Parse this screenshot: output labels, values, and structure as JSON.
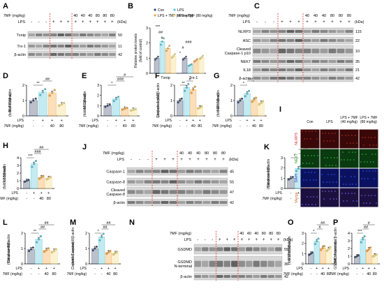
{
  "colors": {
    "con": "#3b4a6b",
    "lps": "#55c6d6",
    "lps40": "#f3a43c",
    "lps80": "#f2d97a",
    "red_dash": "#d9302c"
  },
  "panel_letters": [
    "A",
    "B",
    "C",
    "D",
    "E",
    "F",
    "G",
    "H",
    "I",
    "J",
    "K",
    "L",
    "M",
    "N",
    "O",
    "P"
  ],
  "blot_a": {
    "treat_label": "7MF (mg/kg)",
    "treat_vals": [
      "40",
      "40",
      "40",
      "80",
      "80",
      "80"
    ],
    "lps_label": "LPS",
    "signs": [
      "-",
      "-",
      "-",
      "+",
      "+",
      "+",
      "+",
      "+",
      "+",
      "+",
      "+",
      "+"
    ],
    "kda": "(kDa)",
    "rows": [
      {
        "name": "Txnip",
        "kda": "50"
      },
      {
        "name": "Trx-1",
        "kda": "11"
      },
      {
        "name": "β-actin",
        "kda": "42"
      }
    ]
  },
  "blot_c": {
    "treat_label": "7MF (mg/kg)",
    "treat_vals": [
      "40",
      "40",
      "40",
      "80",
      "80",
      "80"
    ],
    "lps_label": "LPS",
    "signs": [
      "-",
      "-",
      "-",
      "+",
      "+",
      "+",
      "+",
      "+",
      "+",
      "+",
      "+",
      "+"
    ],
    "kda": "(kDa)",
    "rows": [
      {
        "name": "NLRP3",
        "kda": "115"
      },
      {
        "name": "ASC",
        "kda": "22"
      },
      {
        "name": "Cleaved\nCaspase-1 p10",
        "kda": "10"
      },
      {
        "name": "NEK7",
        "kda": "35"
      },
      {
        "name": "IL18",
        "kda": "21"
      },
      {
        "name": "β-actin",
        "kda": "42"
      }
    ]
  },
  "blot_j": {
    "treat_label": "7MF (mg/kg)",
    "treat_vals": [
      "40",
      "40",
      "40",
      "80",
      "80",
      "80"
    ],
    "lps_label": "LPS",
    "signs": [
      "-",
      "-",
      "-",
      "+",
      "+",
      "+",
      "+",
      "+",
      "+",
      "+",
      "+",
      "+"
    ],
    "kda": "(kDa)",
    "rows": [
      {
        "name": "Caspase-1",
        "kda": "45"
      },
      {
        "name": "Caspase-8",
        "kda": "55"
      },
      {
        "name": "Cleaved\nCaspase-8",
        "kda": "47"
      },
      {
        "name": "β-actin",
        "kda": "42"
      }
    ]
  },
  "blot_n": {
    "treat_label": "7MF (mg/kg)",
    "treat_vals": [
      "40",
      "40",
      "40",
      "80",
      "80",
      "80"
    ],
    "lps_label": "LPS",
    "signs": [
      "-",
      "-",
      "-",
      "+",
      "+",
      "+",
      "+",
      "+",
      "+",
      "+",
      "+",
      "+"
    ],
    "kda": "(kDa)",
    "rows": [
      {
        "name": "GSDMD",
        "kda": "55"
      },
      {
        "name": "GSDMD\nN-terminal",
        "kda": "36"
      },
      {
        "name": "β-actin",
        "kda": "42"
      }
    ]
  },
  "panel_b": {
    "ylabel": "Relative protein levels\n(fold of control)",
    "legend": [
      "Con",
      "LPS",
      "LPS + 7MF (40 mg/kg)",
      "LPS + 7MF (80 mg/kg)"
    ],
    "groups": [
      "Txnip",
      "Trx-1"
    ]
  },
  "panel_i": {
    "cols": [
      "Con",
      "LPS",
      "LPS + 7MF\n(40 mg/kg)",
      "LPS + 7MF\n(80 mg/kg)"
    ],
    "rows": [
      "NLRP3",
      "NEK7",
      "DAPI",
      "Merge"
    ]
  },
  "chart_data": [
    {
      "type": "bar",
      "panel": "D",
      "ylabel": "NLRP3/β-actin\n(fold of control)",
      "ylim": [
        0,
        2
      ],
      "yticks": [
        "0",
        "1",
        "2"
      ],
      "values": [
        1.0,
        1.55,
        1.5,
        0.75
      ],
      "sig": [
        "**",
        "##"
      ]
    },
    {
      "type": "bar",
      "panel": "E",
      "ylabel": "ASC/β-actin\n(fold of control)",
      "ylim": [
        0,
        3
      ],
      "yticks": [
        "0",
        "1",
        "2",
        "3"
      ],
      "values": [
        1.0,
        1.65,
        0.7,
        0.6
      ],
      "sig": [
        "*",
        "###",
        "#"
      ]
    },
    {
      "type": "bar",
      "panel": "F",
      "ylabel": "Caspase-1 p10/β-actin\n(fold of control)",
      "ylim": [
        0,
        2
      ],
      "yticks": [
        "0",
        "1",
        "2"
      ],
      "values": [
        1.0,
        1.85,
        1.7,
        0.55
      ],
      "sig": [
        "**",
        "#"
      ]
    },
    {
      "type": "bar",
      "panel": "G",
      "ylabel": "NEK7/β-actin\n(fold of control)",
      "ylim": [
        0,
        2
      ],
      "yticks": [
        "0",
        "1",
        "2"
      ],
      "values": [
        1.0,
        1.45,
        1.05,
        0.85
      ],
      "sig": [
        "*",
        "##"
      ]
    },
    {
      "type": "bar",
      "panel": "H",
      "ylabel": "IL18/β-actin\n(fold of control)",
      "ylim": [
        0,
        4
      ],
      "yticks": [
        "0",
        "1",
        "2",
        "3",
        "4"
      ],
      "values": [
        1.0,
        3.2,
        1.45,
        1.35
      ],
      "sig": [
        "***",
        "###",
        "##"
      ]
    },
    {
      "type": "bar",
      "panel": "K",
      "ylabel": "Caspase-1/β-actin\n(fold of control)",
      "ylim": [
        0,
        3
      ],
      "yticks": [
        "0",
        "1",
        "2",
        "3"
      ],
      "values": [
        1.0,
        1.95,
        1.05,
        1.0
      ],
      "sig": [
        "*",
        "#",
        "##"
      ]
    },
    {
      "type": "bar",
      "panel": "L",
      "ylabel": "Caspase-8/β-actin\n(fold of control)",
      "ylim": [
        0,
        2
      ],
      "yticks": [
        "0",
        "1",
        "2"
      ],
      "values": [
        0.95,
        1.6,
        0.9,
        0.85
      ],
      "sig": [
        "**",
        "##",
        "##"
      ]
    },
    {
      "type": "bar",
      "panel": "M",
      "ylabel": "Cleaved Caspase-8/β-actin\n(fold of control)",
      "ylim": [
        0,
        2
      ],
      "yticks": [
        "0",
        "1",
        "2"
      ],
      "values": [
        1.0,
        1.75,
        0.75,
        0.7
      ],
      "sig": [
        "*",
        "##",
        "##"
      ]
    },
    {
      "type": "bar",
      "panel": "O",
      "ylabel": "GSDMD/β-actin\n(fold of control)",
      "ylim": [
        0,
        3
      ],
      "yticks": [
        "0",
        "1",
        "2",
        "3"
      ],
      "values": [
        1.0,
        2.2,
        1.55,
        1.45
      ],
      "sig": [
        "*",
        "#",
        "##"
      ]
    },
    {
      "type": "bar",
      "panel": "P",
      "ylabel": "GSDMD N-terminal/β-actin\n(fold of control)",
      "ylim": [
        0,
        4
      ],
      "yticks": [
        "0",
        "1",
        "2",
        "3",
        "4"
      ],
      "values": [
        1.0,
        3.2,
        1.9,
        1.1
      ],
      "sig": [
        "***",
        "##",
        "#"
      ]
    },
    {
      "type": "bar",
      "panel": "B",
      "categories": [
        "Txnip",
        "Trx-1"
      ],
      "series": [
        {
          "name": "Con",
          "values": [
            1.0,
            1.0
          ]
        },
        {
          "name": "LPS",
          "values": [
            2.1,
            0.55
          ]
        },
        {
          "name": "LPS + 7MF (40 mg/kg)",
          "values": [
            1.65,
            0.85
          ]
        },
        {
          "name": "LPS + 7MF (80 mg/kg)",
          "values": [
            1.15,
            1.05
          ]
        }
      ],
      "ylim": [
        0,
        3
      ],
      "yticks": [
        "0",
        "1",
        "2",
        "3"
      ],
      "sig": [
        "***",
        "##",
        "#",
        "*",
        "#",
        "###"
      ]
    }
  ],
  "xaxis": {
    "lps_label": "LPS",
    "lps_signs": [
      "-",
      "+",
      "+",
      "+"
    ],
    "mf_label": "7MF (mg/kg)",
    "mf_vals": [
      "-",
      "-",
      "40",
      "80"
    ]
  }
}
